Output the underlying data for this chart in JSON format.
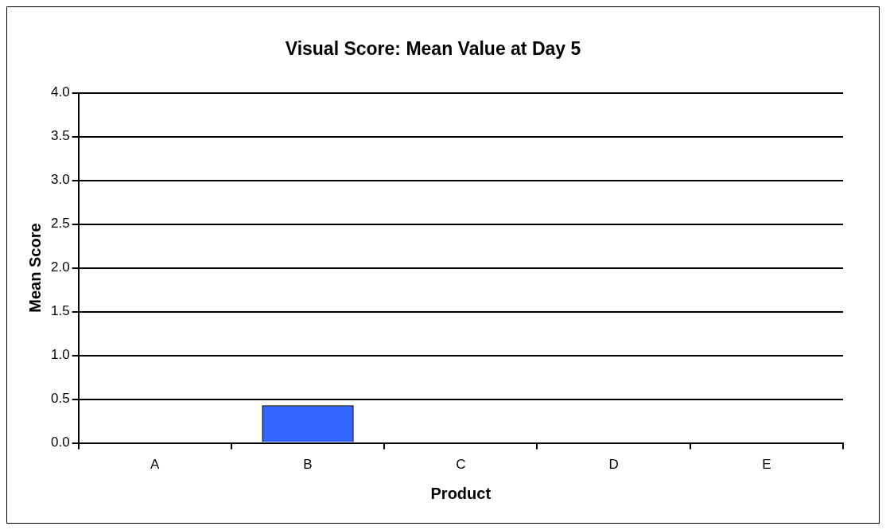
{
  "chart_data": {
    "type": "bar",
    "title": "Visual Score: Mean Value at Day 5",
    "xlabel": "Product",
    "ylabel": "Mean Score",
    "categories": [
      "A",
      "B",
      "C",
      "D",
      "E"
    ],
    "values": [
      0,
      0.43,
      0,
      0,
      0
    ],
    "color": "#3366ff",
    "ylim": [
      0,
      4
    ],
    "yticks": [
      {
        "value": 0,
        "label": "0.0"
      },
      0.5,
      {
        "value": 1,
        "label": "1.0"
      },
      1.5,
      {
        "value": 2,
        "label": "2.0"
      },
      2.5,
      {
        "value": 3,
        "label": "3.0"
      },
      3.5,
      {
        "value": 4,
        "label": "4.0"
      }
    ],
    "grid": "y",
    "legend": false
  }
}
